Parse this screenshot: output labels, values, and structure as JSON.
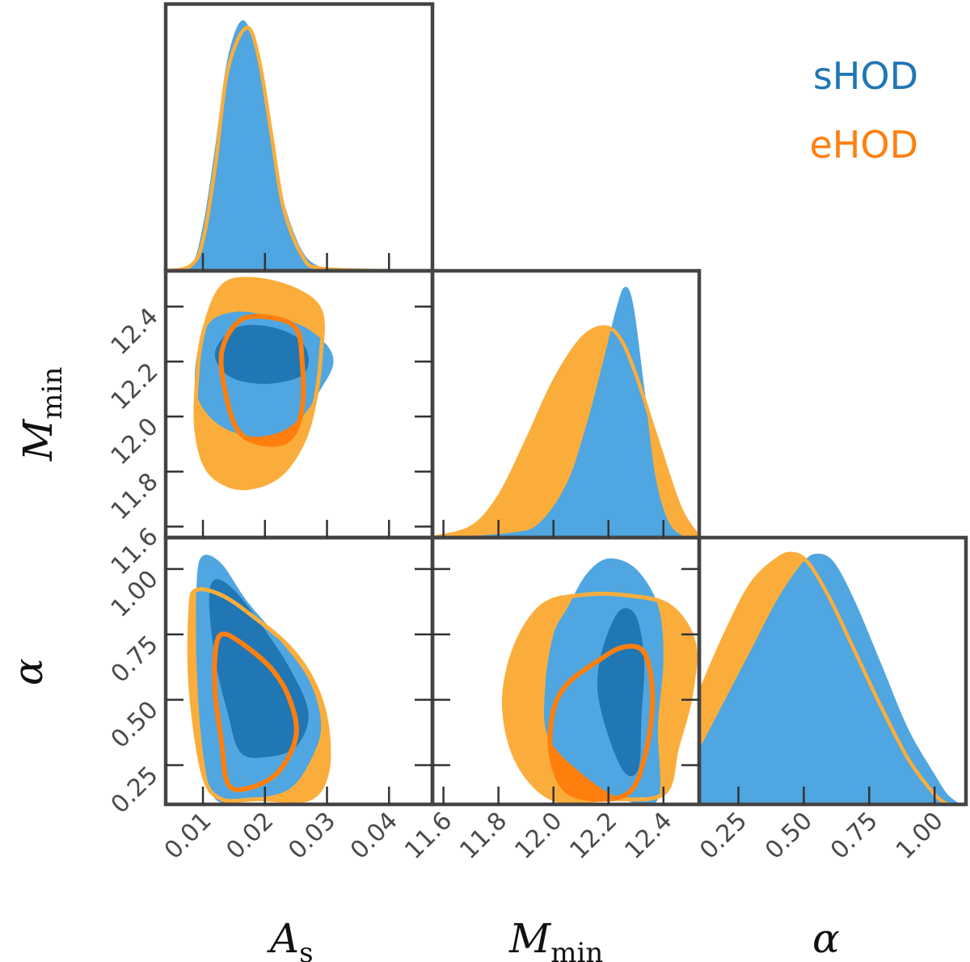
{
  "chart_data": {
    "type": "corner",
    "parameters": [
      {
        "key": "As",
        "label": "A",
        "label_sub": "s",
        "range": [
          0.004,
          0.047
        ],
        "ticks": [
          "0.01",
          "0.02",
          "0.03",
          "0.04"
        ],
        "tick_values": [
          0.01,
          0.02,
          0.03,
          0.04
        ]
      },
      {
        "key": "Mmin",
        "label": "M",
        "label_sub": "min",
        "range": [
          11.56,
          12.53
        ],
        "ticks": [
          "11.6",
          "11.8",
          "12.0",
          "12.2",
          "12.4"
        ],
        "tick_values": [
          11.6,
          11.8,
          12.0,
          12.2,
          12.4
        ]
      },
      {
        "key": "alpha",
        "label": "α",
        "label_sub": "",
        "range": [
          0.1,
          1.12
        ],
        "ticks": [
          "0.25",
          "0.50",
          "0.75",
          "1.00"
        ],
        "tick_values": [
          0.25,
          0.5,
          0.75,
          1.0
        ]
      }
    ],
    "series": [
      {
        "name": "sHOD",
        "color": "#1f77b4",
        "fill_outer": "#4fa6e0",
        "fill_inner": "#2176b4",
        "marginals": {
          "As": [
            [
              0.004,
              0.0
            ],
            [
              0.008,
              0.02
            ],
            [
              0.01,
              0.18
            ],
            [
              0.012,
              0.5
            ],
            [
              0.014,
              0.85
            ],
            [
              0.0165,
              1.0
            ],
            [
              0.019,
              0.84
            ],
            [
              0.021,
              0.55
            ],
            [
              0.023,
              0.28
            ],
            [
              0.026,
              0.08
            ],
            [
              0.029,
              0.015
            ],
            [
              0.033,
              0.003
            ],
            [
              0.04,
              0.0
            ]
          ],
          "Mmin": [
            [
              11.6,
              0.0
            ],
            [
              11.85,
              0.02
            ],
            [
              11.95,
              0.06
            ],
            [
              12.05,
              0.22
            ],
            [
              12.12,
              0.45
            ],
            [
              12.18,
              0.7
            ],
            [
              12.23,
              0.92
            ],
            [
              12.26,
              1.0
            ],
            [
              12.29,
              0.93
            ],
            [
              12.33,
              0.6
            ],
            [
              12.37,
              0.25
            ],
            [
              12.42,
              0.06
            ],
            [
              12.48,
              0.0
            ]
          ],
          "alpha": [
            [
              0.1,
              0.22
            ],
            [
              0.2,
              0.42
            ],
            [
              0.3,
              0.62
            ],
            [
              0.4,
              0.82
            ],
            [
              0.5,
              0.97
            ],
            [
              0.56,
              1.0
            ],
            [
              0.62,
              0.96
            ],
            [
              0.7,
              0.8
            ],
            [
              0.8,
              0.55
            ],
            [
              0.9,
              0.3
            ],
            [
              1.0,
              0.12
            ],
            [
              1.05,
              0.04
            ],
            [
              1.1,
              0.0
            ]
          ]
        }
      },
      {
        "name": "eHOD",
        "color": "#ff7f0e",
        "fill_outer": "#fbad3c",
        "fill_inner": "#ff7f0e",
        "marginals": {
          "As": [
            [
              0.004,
              0.0
            ],
            [
              0.008,
              0.02
            ],
            [
              0.01,
              0.12
            ],
            [
              0.012,
              0.42
            ],
            [
              0.014,
              0.8
            ],
            [
              0.017,
              0.97
            ],
            [
              0.019,
              0.85
            ],
            [
              0.021,
              0.55
            ],
            [
              0.023,
              0.25
            ],
            [
              0.026,
              0.06
            ],
            [
              0.029,
              0.01
            ],
            [
              0.04,
              0.0
            ]
          ],
          "Mmin": [
            [
              11.56,
              0.0
            ],
            [
              11.7,
              0.04
            ],
            [
              11.8,
              0.16
            ],
            [
              11.9,
              0.38
            ],
            [
              12.0,
              0.62
            ],
            [
              12.1,
              0.79
            ],
            [
              12.18,
              0.84
            ],
            [
              12.24,
              0.8
            ],
            [
              12.3,
              0.65
            ],
            [
              12.38,
              0.38
            ],
            [
              12.46,
              0.12
            ],
            [
              12.53,
              0.0
            ]
          ],
          "alpha": [
            [
              0.1,
              0.44
            ],
            [
              0.2,
              0.68
            ],
            [
              0.3,
              0.88
            ],
            [
              0.4,
              0.98
            ],
            [
              0.46,
              1.0
            ],
            [
              0.52,
              0.96
            ],
            [
              0.6,
              0.82
            ],
            [
              0.7,
              0.6
            ],
            [
              0.8,
              0.38
            ],
            [
              0.9,
              0.18
            ],
            [
              1.0,
              0.04
            ],
            [
              1.05,
              0.0
            ]
          ]
        }
      }
    ],
    "legend": {
      "position": "top-right",
      "entries": [
        "sHOD",
        "eHOD"
      ]
    },
    "grid": false
  }
}
